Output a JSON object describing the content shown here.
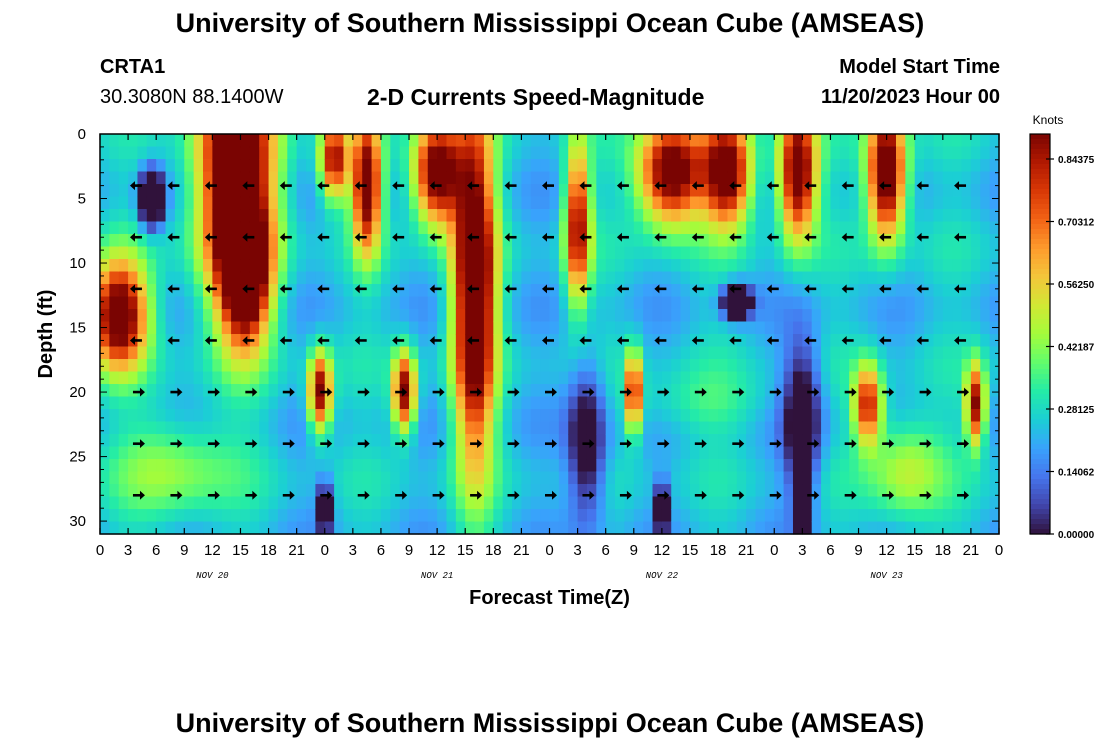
{
  "header": {
    "title": "University of Southern Mississippi Ocean Cube (AMSEAS)",
    "station": "CRTA1",
    "coords": "30.3080N  88.1400W",
    "subtitle": "2-D Currents Speed-Magnitude",
    "start_label": "Model Start Time",
    "start_value": "11/20/2023 Hour 00"
  },
  "footer": {
    "title": "University of Southern Mississippi Ocean Cube (AMSEAS)"
  },
  "chart_data": {
    "type": "heatmap",
    "title": "2-D Currents Speed-Magnitude",
    "xlabel": "Forecast Time(Z)",
    "ylabel": "Depth (ft)",
    "x_ticks": [
      "0",
      "3",
      "6",
      "9",
      "12",
      "15",
      "18",
      "21",
      "0",
      "3",
      "6",
      "9",
      "12",
      "15",
      "18",
      "21",
      "0",
      "3",
      "6",
      "9",
      "12",
      "15",
      "18",
      "21",
      "0",
      "3",
      "6",
      "9",
      "12",
      "15",
      "18",
      "21",
      "0"
    ],
    "date_labels": [
      {
        "hour": 12,
        "label": "NOV 20"
      },
      {
        "hour": 36,
        "label": "NOV 21"
      },
      {
        "hour": 60,
        "label": "NOV 22"
      },
      {
        "hour": 84,
        "label": "NOV 23"
      }
    ],
    "xlim": [
      0,
      96
    ],
    "ylim": [
      0,
      31
    ],
    "y_ticks": [
      0,
      5,
      10,
      15,
      20,
      25,
      30
    ],
    "colorbar": {
      "unit": "Knots",
      "min": 0,
      "max": 0.9,
      "tick_values": [
        0,
        0.140625,
        0.28125,
        0.421875,
        0.5625,
        0.703125,
        0.84375
      ],
      "tick_labels": [
        "0.00000",
        "0.14062",
        "0.28125",
        "0.42187",
        "0.56250",
        "0.70312",
        "0.84375"
      ],
      "colors": [
        "#30123b",
        "#4145ab",
        "#4675ed",
        "#39a2fc",
        "#1bcfd4",
        "#24eca6",
        "#61fc6c",
        "#a4fc3b",
        "#d1e834",
        "#f3c63a",
        "#fe9b2d",
        "#f36315",
        "#d93806",
        "#b11901",
        "#7a0402"
      ]
    },
    "speed_features": [
      {
        "t": 14.5,
        "z": 3,
        "st": 4,
        "sz": 10,
        "v": 0.9
      },
      {
        "t": 15.5,
        "z": 11,
        "st": 2.5,
        "sz": 5,
        "v": 0.75
      },
      {
        "t": 2,
        "z": 14,
        "st": 3,
        "sz": 4,
        "v": 0.8
      },
      {
        "t": 5.5,
        "z": 5,
        "st": 1.2,
        "sz": 2,
        "v": -0.7
      },
      {
        "t": 25,
        "z": 2,
        "st": 1.5,
        "sz": 3,
        "v": 0.65
      },
      {
        "t": 28.5,
        "z": 4,
        "st": 1.5,
        "sz": 5,
        "v": 0.75
      },
      {
        "t": 23.5,
        "z": 20,
        "st": 1.2,
        "sz": 3,
        "v": 0.7
      },
      {
        "t": 32.5,
        "z": 20,
        "st": 1.2,
        "sz": 3,
        "v": 0.7
      },
      {
        "t": 40,
        "z": 12,
        "st": 2.2,
        "sz": 13,
        "v": 0.9
      },
      {
        "t": 36,
        "z": 3,
        "st": 2.5,
        "sz": 4,
        "v": 0.8
      },
      {
        "t": 51,
        "z": 7,
        "st": 1.3,
        "sz": 6,
        "v": 0.65
      },
      {
        "t": 57,
        "z": 20,
        "st": 0.8,
        "sz": 3,
        "v": 0.65
      },
      {
        "t": 61,
        "z": 3,
        "st": 3.5,
        "sz": 4,
        "v": 0.8
      },
      {
        "t": 67,
        "z": 3,
        "st": 2.5,
        "sz": 4,
        "v": 0.75
      },
      {
        "t": 74.5,
        "z": 3,
        "st": 2,
        "sz": 5,
        "v": 0.8
      },
      {
        "t": 84,
        "z": 3,
        "st": 2,
        "sz": 5,
        "v": 0.85
      },
      {
        "t": 82,
        "z": 21,
        "st": 1.5,
        "sz": 3,
        "v": 0.6
      },
      {
        "t": 93.5,
        "z": 21,
        "st": 1,
        "sz": 3,
        "v": 0.65
      },
      {
        "t": 68,
        "z": 13,
        "st": 1.5,
        "sz": 1.2,
        "v": -0.6
      },
      {
        "t": 75,
        "z": 28,
        "st": 0.8,
        "sz": 4,
        "v": -0.6
      },
      {
        "t": 60,
        "z": 29,
        "st": 0.6,
        "sz": 2,
        "v": -0.5
      },
      {
        "t": 24,
        "z": 29,
        "st": 0.8,
        "sz": 2,
        "v": -0.4
      },
      {
        "t": 52,
        "z": 24,
        "st": 2,
        "sz": 6,
        "v": -0.35
      },
      {
        "t": 75,
        "z": 22,
        "st": 2,
        "sz": 6,
        "v": -0.35
      },
      {
        "t": 86,
        "z": 26,
        "st": 4,
        "sz": 4,
        "v": 0.25
      },
      {
        "t": 8,
        "z": 26,
        "st": 6,
        "sz": 4,
        "v": 0.2
      },
      {
        "t": 64,
        "z": 21,
        "st": 8,
        "sz": 2.5,
        "v": 0.1
      }
    ],
    "arrow_depths": [
      4,
      8,
      12,
      16,
      20,
      24,
      28
    ],
    "arrow_directions": [
      {
        "depth": 4,
        "dir": "W"
      },
      {
        "depth": 8,
        "dir": "W"
      },
      {
        "depth": 12,
        "dir": "W"
      },
      {
        "depth": 16,
        "dir": "W"
      },
      {
        "depth": 20,
        "dir": "E"
      },
      {
        "depth": 24,
        "dir": "E"
      },
      {
        "depth": 28,
        "dir": "E"
      }
    ]
  }
}
